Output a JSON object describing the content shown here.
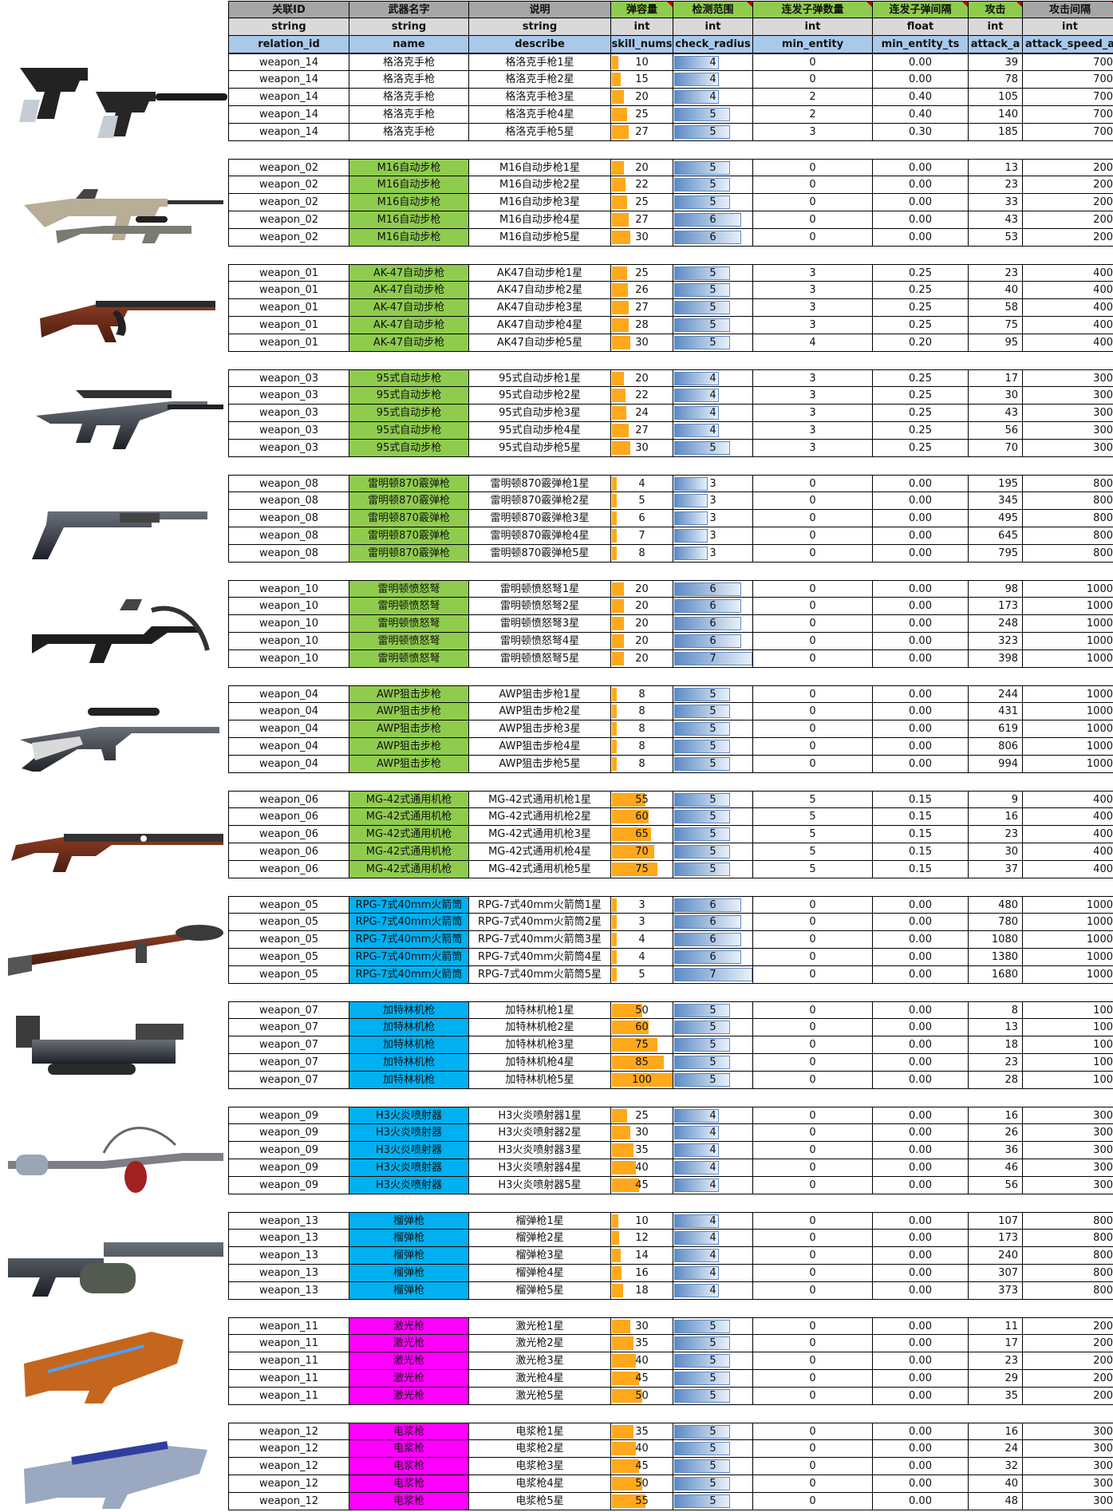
{
  "header": {
    "labels": [
      "关联ID",
      "武器名字",
      "说明",
      "弹容量",
      "检测范围",
      "连发子弹数量",
      "连发子弹间隔",
      "攻击",
      "攻击间隔"
    ],
    "types": [
      "string",
      "string",
      "string",
      "int",
      "int",
      "int",
      "float",
      "int",
      "int"
    ],
    "keys": [
      "relation_id",
      "name",
      "describe",
      "skill_nums",
      "check_radius",
      "min_entity",
      "min_entity_ts",
      "attack_a",
      "attack_speed_a"
    ]
  },
  "colors": {
    "grey": "#a6a6a6",
    "light_grey": "#d9d9d9",
    "blue_header": "#a9c9eb",
    "green": "#8fcc4e",
    "cyan": "#00b0f0",
    "magenta": "#ff00ff",
    "ammo_bar": "#ffa81c",
    "range_bar": "#5c8bc6"
  },
  "groups": [
    {
      "icon": "pistol-icon",
      "id": "weapon_14",
      "fill": "none",
      "rows": [
        [
          "格洛克手枪",
          "格洛克手枪1星",
          10,
          4,
          0,
          "0.00",
          39,
          700
        ],
        [
          "格洛克手枪",
          "格洛克手枪2星",
          15,
          4,
          0,
          "0.00",
          78,
          700
        ],
        [
          "格洛克手枪",
          "格洛克手枪3星",
          20,
          4,
          2,
          "0.40",
          105,
          700
        ],
        [
          "格洛克手枪",
          "格洛克手枪4星",
          25,
          5,
          2,
          "0.40",
          140,
          700
        ],
        [
          "格洛克手枪",
          "格洛克手枪5星",
          27,
          5,
          3,
          "0.30",
          185,
          700
        ]
      ]
    },
    {
      "icon": "m16-rifle-icon",
      "id": "weapon_02",
      "fill": "green",
      "rows": [
        [
          "M16自动步枪",
          "M16自动步枪1星",
          20,
          5,
          0,
          "0.00",
          13,
          200
        ],
        [
          "M16自动步枪",
          "M16自动步枪2星",
          22,
          5,
          0,
          "0.00",
          23,
          200
        ],
        [
          "M16自动步枪",
          "M16自动步枪3星",
          25,
          5,
          0,
          "0.00",
          33,
          200
        ],
        [
          "M16自动步枪",
          "M16自动步枪4星",
          27,
          6,
          0,
          "0.00",
          43,
          200
        ],
        [
          "M16自动步枪",
          "M16自动步枪5星",
          30,
          6,
          0,
          "0.00",
          53,
          200
        ]
      ]
    },
    {
      "icon": "ak47-rifle-icon",
      "id": "weapon_01",
      "fill": "green",
      "rows": [
        [
          "AK-47自动步枪",
          "AK47自动步枪1星",
          25,
          5,
          3,
          "0.25",
          23,
          400
        ],
        [
          "AK-47自动步枪",
          "AK47自动步枪2星",
          26,
          5,
          3,
          "0.25",
          40,
          400
        ],
        [
          "AK-47自动步枪",
          "AK47自动步枪3星",
          27,
          5,
          3,
          "0.25",
          58,
          400
        ],
        [
          "AK-47自动步枪",
          "AK47自动步枪4星",
          28,
          5,
          3,
          "0.25",
          75,
          400
        ],
        [
          "AK-47自动步枪",
          "AK47自动步枪5星",
          30,
          5,
          4,
          "0.20",
          95,
          400
        ]
      ]
    },
    {
      "icon": "type95-rifle-icon",
      "id": "weapon_03",
      "fill": "green",
      "rows": [
        [
          "95式自动步枪",
          "95式自动步枪1星",
          20,
          4,
          3,
          "0.25",
          17,
          300
        ],
        [
          "95式自动步枪",
          "95式自动步枪2星",
          22,
          4,
          3,
          "0.25",
          30,
          300
        ],
        [
          "95式自动步枪",
          "95式自动步枪3星",
          24,
          4,
          3,
          "0.25",
          43,
          300
        ],
        [
          "95式自动步枪",
          "95式自动步枪4星",
          27,
          4,
          3,
          "0.25",
          56,
          300
        ],
        [
          "95式自动步枪",
          "95式自动步枪5星",
          30,
          5,
          3,
          "0.25",
          70,
          300
        ]
      ]
    },
    {
      "icon": "shotgun-icon",
      "id": "weapon_08",
      "fill": "green",
      "rows": [
        [
          "雷明顿870霰弹枪",
          "雷明顿870霰弹枪1星",
          4,
          3,
          0,
          "0.00",
          195,
          800
        ],
        [
          "雷明顿870霰弹枪",
          "雷明顿870霰弹枪2星",
          5,
          3,
          0,
          "0.00",
          345,
          800
        ],
        [
          "雷明顿870霰弹枪",
          "雷明顿870霰弹枪3星",
          6,
          3,
          0,
          "0.00",
          495,
          800
        ],
        [
          "雷明顿870霰弹枪",
          "雷明顿870霰弹枪4星",
          7,
          3,
          0,
          "0.00",
          645,
          800
        ],
        [
          "雷明顿870霰弹枪",
          "雷明顿870霰弹枪5星",
          8,
          3,
          0,
          "0.00",
          795,
          800
        ]
      ]
    },
    {
      "icon": "crossbow-icon",
      "id": "weapon_10",
      "fill": "green",
      "rows": [
        [
          "雷明顿愤怒弩",
          "雷明顿愤怒弩1星",
          20,
          6,
          0,
          "0.00",
          98,
          1000
        ],
        [
          "雷明顿愤怒弩",
          "雷明顿愤怒弩2星",
          20,
          6,
          0,
          "0.00",
          173,
          1000
        ],
        [
          "雷明顿愤怒弩",
          "雷明顿愤怒弩3星",
          20,
          6,
          0,
          "0.00",
          248,
          1000
        ],
        [
          "雷明顿愤怒弩",
          "雷明顿愤怒弩4星",
          20,
          6,
          0,
          "0.00",
          323,
          1000
        ],
        [
          "雷明顿愤怒弩",
          "雷明顿愤怒弩5星",
          20,
          7,
          0,
          "0.00",
          398,
          1000
        ]
      ]
    },
    {
      "icon": "sniper-rifle-icon",
      "id": "weapon_04",
      "fill": "green",
      "rows": [
        [
          "AWP狙击步枪",
          "AWP狙击步枪1星",
          8,
          5,
          0,
          "0.00",
          244,
          1000
        ],
        [
          "AWP狙击步枪",
          "AWP狙击步枪2星",
          8,
          5,
          0,
          "0.00",
          431,
          1000
        ],
        [
          "AWP狙击步枪",
          "AWP狙击步枪3星",
          8,
          5,
          0,
          "0.00",
          619,
          1000
        ],
        [
          "AWP狙击步枪",
          "AWP狙击步枪4星",
          8,
          5,
          0,
          "0.00",
          806,
          1000
        ],
        [
          "AWP狙击步枪",
          "AWP狙击步枪5星",
          8,
          5,
          0,
          "0.00",
          994,
          1000
        ]
      ]
    },
    {
      "icon": "machine-gun-icon",
      "id": "weapon_06",
      "fill": "green",
      "rows": [
        [
          "MG-42式通用机枪",
          "MG-42式通用机枪1星",
          55,
          5,
          5,
          "0.15",
          9,
          400
        ],
        [
          "MG-42式通用机枪",
          "MG-42式通用机枪2星",
          60,
          5,
          5,
          "0.15",
          16,
          400
        ],
        [
          "MG-42式通用机枪",
          "MG-42式通用机枪3星",
          65,
          5,
          5,
          "0.15",
          23,
          400
        ],
        [
          "MG-42式通用机枪",
          "MG-42式通用机枪4星",
          70,
          5,
          5,
          "0.15",
          30,
          400
        ],
        [
          "MG-42式通用机枪",
          "MG-42式通用机枪5星",
          75,
          5,
          5,
          "0.15",
          37,
          400
        ]
      ]
    },
    {
      "icon": "rpg-launcher-icon",
      "id": "weapon_05",
      "fill": "cyan",
      "rows": [
        [
          "RPG-7式40mm火箭筒",
          "RPG-7式40mm火箭筒1星",
          3,
          6,
          0,
          "0.00",
          480,
          1000
        ],
        [
          "RPG-7式40mm火箭筒",
          "RPG-7式40mm火箭筒2星",
          3,
          6,
          0,
          "0.00",
          780,
          1000
        ],
        [
          "RPG-7式40mm火箭筒",
          "RPG-7式40mm火箭筒3星",
          4,
          6,
          0,
          "0.00",
          1080,
          1000
        ],
        [
          "RPG-7式40mm火箭筒",
          "RPG-7式40mm火箭筒4星",
          4,
          6,
          0,
          "0.00",
          1380,
          1000
        ],
        [
          "RPG-7式40mm火箭筒",
          "RPG-7式40mm火箭筒5星",
          5,
          7,
          0,
          "0.00",
          1680,
          1000
        ]
      ]
    },
    {
      "icon": "gatling-gun-icon",
      "id": "weapon_07",
      "fill": "cyan",
      "rows": [
        [
          "加特林机枪",
          "加特林机枪1星",
          50,
          5,
          0,
          "0.00",
          8,
          100
        ],
        [
          "加特林机枪",
          "加特林机枪2星",
          60,
          5,
          0,
          "0.00",
          13,
          100
        ],
        [
          "加特林机枪",
          "加特林机枪3星",
          75,
          5,
          0,
          "0.00",
          18,
          100
        ],
        [
          "加特林机枪",
          "加特林机枪4星",
          85,
          5,
          0,
          "0.00",
          23,
          100
        ],
        [
          "加特林机枪",
          "加特林机枪5星",
          100,
          5,
          0,
          "0.00",
          28,
          100
        ]
      ]
    },
    {
      "icon": "flamethrower-icon",
      "id": "weapon_09",
      "fill": "cyan",
      "rows": [
        [
          "H3火炎喷射器",
          "H3火炎喷射器1星",
          25,
          4,
          0,
          "0.00",
          16,
          300
        ],
        [
          "H3火炎喷射器",
          "H3火炎喷射器2星",
          30,
          4,
          0,
          "0.00",
          26,
          300
        ],
        [
          "H3火炎喷射器",
          "H3火炎喷射器3星",
          35,
          4,
          0,
          "0.00",
          36,
          300
        ],
        [
          "H3火炎喷射器",
          "H3火炎喷射器4星",
          40,
          4,
          0,
          "0.00",
          46,
          300
        ],
        [
          "H3火炎喷射器",
          "H3火炎喷射器5星",
          45,
          4,
          0,
          "0.00",
          56,
          300
        ]
      ]
    },
    {
      "icon": "grenade-launcher-icon",
      "id": "weapon_13",
      "fill": "cyan",
      "rows": [
        [
          "榴弹枪",
          "榴弹枪1星",
          10,
          4,
          0,
          "0.00",
          107,
          800
        ],
        [
          "榴弹枪",
          "榴弹枪2星",
          12,
          4,
          0,
          "0.00",
          173,
          800
        ],
        [
          "榴弹枪",
          "榴弹枪3星",
          14,
          4,
          0,
          "0.00",
          240,
          800
        ],
        [
          "榴弹枪",
          "榴弹枪4星",
          16,
          4,
          0,
          "0.00",
          307,
          800
        ],
        [
          "榴弹枪",
          "榴弹枪5星",
          18,
          4,
          0,
          "0.00",
          373,
          800
        ]
      ]
    },
    {
      "icon": "laser-gun-icon",
      "id": "weapon_11",
      "fill": "magenta",
      "rows": [
        [
          "激光枪",
          "激光枪1星",
          30,
          5,
          0,
          "0.00",
          11,
          200
        ],
        [
          "激光枪",
          "激光枪2星",
          35,
          5,
          0,
          "0.00",
          17,
          200
        ],
        [
          "激光枪",
          "激光枪3星",
          40,
          5,
          0,
          "0.00",
          23,
          200
        ],
        [
          "激光枪",
          "激光枪4星",
          45,
          5,
          0,
          "0.00",
          29,
          200
        ],
        [
          "激光枪",
          "激光枪5星",
          50,
          5,
          0,
          "0.00",
          35,
          200
        ]
      ]
    },
    {
      "icon": "plasma-gun-icon",
      "id": "weapon_12",
      "fill": "magenta",
      "rows": [
        [
          "电浆枪",
          "电浆枪1星",
          35,
          5,
          0,
          "0.00",
          16,
          300
        ],
        [
          "电浆枪",
          "电浆枪2星",
          40,
          5,
          0,
          "0.00",
          24,
          300
        ],
        [
          "电浆枪",
          "电浆枪3星",
          45,
          5,
          0,
          "0.00",
          32,
          300
        ],
        [
          "电浆枪",
          "电浆枪4星",
          50,
          5,
          0,
          "0.00",
          40,
          300
        ],
        [
          "电浆枪",
          "电浆枪5星",
          55,
          5,
          0,
          "0.00",
          48,
          300
        ]
      ]
    }
  ]
}
